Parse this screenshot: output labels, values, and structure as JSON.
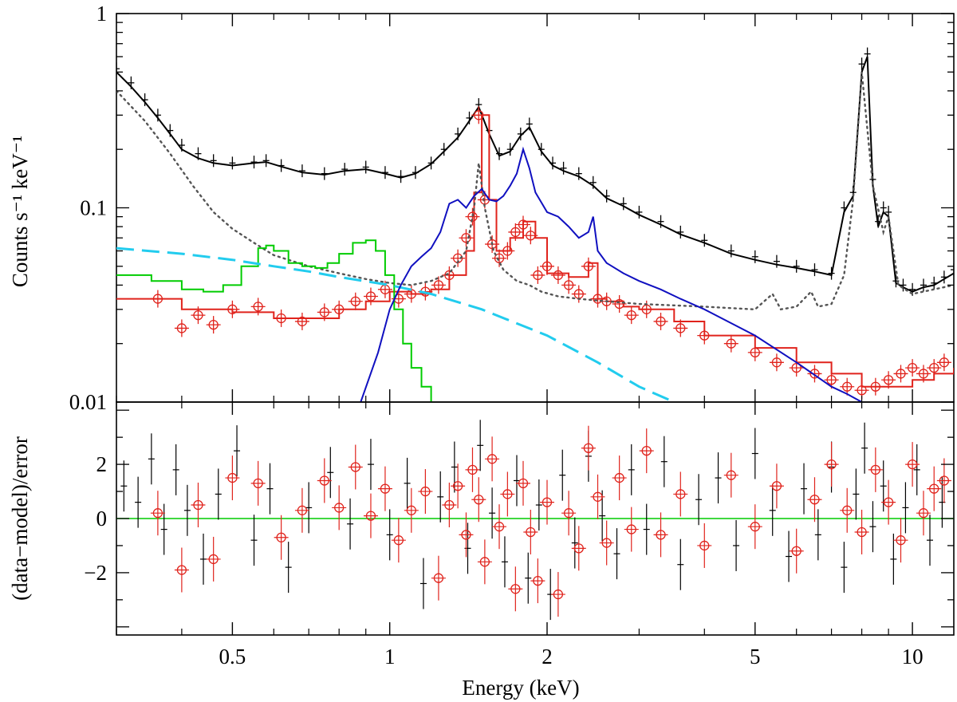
{
  "chart_data": [
    {
      "type": "line",
      "panel": "top",
      "xscale": "log",
      "yscale": "log",
      "xlim": [
        0.3,
        12.0
      ],
      "ylim": [
        0.01,
        1.0
      ],
      "ylabel": "Counts s⁻¹ keV⁻¹",
      "ytick_labels": [
        "0.01",
        "0.1",
        "1"
      ],
      "ytick_values": [
        0.01,
        0.1,
        1
      ],
      "series": [
        {
          "name": "data_black",
          "style": "crosses",
          "color": "#000000",
          "x": [
            0.3,
            0.32,
            0.34,
            0.36,
            0.38,
            0.4,
            0.43,
            0.46,
            0.5,
            0.55,
            0.58,
            0.62,
            0.68,
            0.75,
            0.82,
            0.9,
            0.98,
            1.05,
            1.12,
            1.2,
            1.27,
            1.35,
            1.42,
            1.48,
            1.55,
            1.62,
            1.7,
            1.78,
            1.85,
            1.95,
            2.05,
            2.15,
            2.3,
            2.45,
            2.6,
            2.8,
            3.0,
            3.3,
            3.6,
            4.0,
            4.5,
            5.0,
            5.5,
            6.0,
            6.5,
            7.0,
            7.4,
            7.7,
            8.0,
            8.2,
            8.4,
            8.6,
            8.8,
            9.0,
            9.3,
            9.6,
            10.0,
            10.5,
            11.0,
            11.5,
            12.0
          ],
          "y": [
            0.52,
            0.44,
            0.36,
            0.3,
            0.25,
            0.21,
            0.19,
            0.175,
            0.17,
            0.172,
            0.175,
            0.165,
            0.155,
            0.15,
            0.158,
            0.162,
            0.152,
            0.145,
            0.152,
            0.17,
            0.2,
            0.24,
            0.29,
            0.34,
            0.25,
            0.19,
            0.2,
            0.24,
            0.27,
            0.2,
            0.17,
            0.16,
            0.15,
            0.135,
            0.115,
            0.105,
            0.095,
            0.085,
            0.075,
            0.068,
            0.06,
            0.056,
            0.053,
            0.05,
            0.048,
            0.046,
            0.1,
            0.12,
            0.55,
            0.62,
            0.14,
            0.085,
            0.1,
            0.095,
            0.042,
            0.04,
            0.038,
            0.04,
            0.041,
            0.044,
            0.048
          ]
        },
        {
          "name": "model_black",
          "style": "line",
          "color": "#000000",
          "x": [
            0.3,
            0.32,
            0.34,
            0.36,
            0.38,
            0.4,
            0.43,
            0.46,
            0.5,
            0.55,
            0.58,
            0.62,
            0.68,
            0.75,
            0.82,
            0.9,
            0.98,
            1.05,
            1.12,
            1.2,
            1.27,
            1.35,
            1.42,
            1.48,
            1.55,
            1.62,
            1.7,
            1.78,
            1.85,
            1.95,
            2.05,
            2.15,
            2.3,
            2.45,
            2.6,
            2.8,
            3.0,
            3.3,
            3.6,
            4.0,
            4.5,
            5.0,
            5.5,
            6.0,
            6.5,
            7.0,
            7.4,
            7.7,
            8.0,
            8.2,
            8.4,
            8.6,
            8.8,
            9.0,
            9.3,
            9.6,
            10.0,
            10.5,
            11.0,
            11.5,
            12.0
          ],
          "y": [
            0.5,
            0.42,
            0.35,
            0.29,
            0.24,
            0.2,
            0.18,
            0.17,
            0.165,
            0.17,
            0.172,
            0.163,
            0.152,
            0.148,
            0.155,
            0.158,
            0.15,
            0.143,
            0.15,
            0.168,
            0.195,
            0.23,
            0.28,
            0.33,
            0.24,
            0.185,
            0.195,
            0.235,
            0.26,
            0.195,
            0.165,
            0.155,
            0.145,
            0.13,
            0.112,
            0.102,
            0.092,
            0.082,
            0.073,
            0.066,
            0.058,
            0.054,
            0.051,
            0.049,
            0.047,
            0.045,
            0.095,
            0.115,
            0.5,
            0.6,
            0.13,
            0.08,
            0.095,
            0.09,
            0.041,
            0.039,
            0.037,
            0.039,
            0.04,
            0.043,
            0.046
          ]
        },
        {
          "name": "data_red",
          "style": "circles",
          "color": "#e0231c",
          "x": [
            0.36,
            0.4,
            0.43,
            0.46,
            0.5,
            0.56,
            0.62,
            0.68,
            0.75,
            0.8,
            0.86,
            0.92,
            0.98,
            1.04,
            1.1,
            1.17,
            1.24,
            1.3,
            1.35,
            1.4,
            1.44,
            1.48,
            1.52,
            1.57,
            1.62,
            1.68,
            1.74,
            1.8,
            1.86,
            1.92,
            2.0,
            2.1,
            2.2,
            2.3,
            2.4,
            2.5,
            2.6,
            2.75,
            2.9,
            3.1,
            3.3,
            3.6,
            4.0,
            4.5,
            5.0,
            5.5,
            6.0,
            6.5,
            7.0,
            7.5,
            8.0,
            8.5,
            9.0,
            9.5,
            10.0,
            10.5,
            11.0,
            11.5
          ],
          "y": [
            0.034,
            0.024,
            0.028,
            0.025,
            0.03,
            0.031,
            0.027,
            0.026,
            0.029,
            0.03,
            0.033,
            0.035,
            0.038,
            0.034,
            0.036,
            0.037,
            0.04,
            0.045,
            0.055,
            0.07,
            0.09,
            0.3,
            0.11,
            0.065,
            0.055,
            0.06,
            0.075,
            0.082,
            0.072,
            0.045,
            0.05,
            0.045,
            0.04,
            0.036,
            0.05,
            0.034,
            0.033,
            0.032,
            0.028,
            0.03,
            0.026,
            0.024,
            0.022,
            0.02,
            0.018,
            0.016,
            0.015,
            0.014,
            0.013,
            0.012,
            0.0115,
            0.012,
            0.013,
            0.014,
            0.015,
            0.014,
            0.015,
            0.016
          ]
        },
        {
          "name": "model_red",
          "style": "step",
          "color": "#e0231c",
          "x": [
            0.3,
            0.4,
            0.5,
            0.6,
            0.7,
            0.8,
            0.9,
            1.0,
            1.1,
            1.2,
            1.3,
            1.4,
            1.45,
            1.5,
            1.55,
            1.6,
            1.7,
            1.8,
            1.9,
            2.0,
            2.2,
            2.4,
            2.5,
            2.6,
            2.8,
            3.0,
            3.5,
            4.0,
            5.0,
            6.0,
            7.0,
            8.0,
            9.0,
            10.0,
            11.0,
            12.0
          ],
          "y": [
            0.034,
            0.03,
            0.029,
            0.027,
            0.027,
            0.03,
            0.033,
            0.037,
            0.036,
            0.038,
            0.045,
            0.06,
            0.12,
            0.3,
            0.11,
            0.06,
            0.07,
            0.085,
            0.07,
            0.046,
            0.044,
            0.052,
            0.034,
            0.033,
            0.031,
            0.03,
            0.026,
            0.022,
            0.019,
            0.016,
            0.014,
            0.012,
            0.012,
            0.013,
            0.014,
            0.015
          ]
        },
        {
          "name": "dotted_gray",
          "style": "dotted",
          "color": "#555555",
          "x": [
            0.3,
            0.34,
            0.38,
            0.42,
            0.46,
            0.5,
            0.55,
            0.6,
            0.7,
            0.8,
            0.9,
            1.0,
            1.1,
            1.2,
            1.3,
            1.4,
            1.45,
            1.48,
            1.52,
            1.58,
            1.65,
            1.75,
            1.85,
            1.95,
            2.1,
            2.3,
            2.6,
            3.0,
            4.0,
            5.0,
            5.4,
            5.6,
            6.0,
            6.4,
            6.6,
            7.0,
            7.4,
            7.7,
            8.0,
            8.4,
            8.8,
            9.0,
            9.4,
            10.0,
            12.0
          ],
          "y": [
            0.4,
            0.28,
            0.19,
            0.13,
            0.095,
            0.078,
            0.066,
            0.057,
            0.05,
            0.046,
            0.043,
            0.041,
            0.04,
            0.042,
            0.046,
            0.06,
            0.1,
            0.17,
            0.1,
            0.06,
            0.048,
            0.042,
            0.04,
            0.037,
            0.035,
            0.034,
            0.033,
            0.032,
            0.031,
            0.03,
            0.036,
            0.03,
            0.031,
            0.037,
            0.031,
            0.032,
            0.045,
            0.11,
            0.5,
            0.13,
            0.075,
            0.09,
            0.04,
            0.036,
            0.04
          ]
        },
        {
          "name": "green_component",
          "style": "step",
          "color": "#00cc00",
          "x": [
            0.3,
            0.35,
            0.4,
            0.44,
            0.48,
            0.52,
            0.56,
            0.58,
            0.6,
            0.64,
            0.68,
            0.72,
            0.76,
            0.8,
            0.85,
            0.9,
            0.94,
            0.98,
            1.02,
            1.06,
            1.1,
            1.15,
            1.2
          ],
          "y": [
            0.045,
            0.042,
            0.038,
            0.037,
            0.04,
            0.05,
            0.062,
            0.064,
            0.06,
            0.052,
            0.05,
            0.049,
            0.052,
            0.058,
            0.066,
            0.068,
            0.06,
            0.045,
            0.03,
            0.02,
            0.015,
            0.012,
            0.01
          ]
        },
        {
          "name": "cyan_component",
          "style": "dashed",
          "color": "#22ccee",
          "x": [
            0.3,
            0.4,
            0.5,
            0.6,
            0.7,
            0.8,
            1.0,
            1.2,
            1.5,
            2.0,
            2.5,
            3.0,
            3.5
          ],
          "y": [
            0.062,
            0.058,
            0.054,
            0.05,
            0.047,
            0.044,
            0.04,
            0.036,
            0.03,
            0.022,
            0.016,
            0.012,
            0.01
          ]
        },
        {
          "name": "blue_component",
          "style": "line",
          "color": "#1010c0",
          "x": [
            0.88,
            0.95,
            1.0,
            1.05,
            1.1,
            1.15,
            1.2,
            1.25,
            1.3,
            1.35,
            1.4,
            1.45,
            1.5,
            1.55,
            1.6,
            1.65,
            1.7,
            1.75,
            1.8,
            1.85,
            1.9,
            2.0,
            2.1,
            2.2,
            2.3,
            2.4,
            2.45,
            2.5,
            2.6,
            2.8,
            3.0,
            3.3,
            3.6,
            4.0,
            5.0,
            6.0,
            7.0,
            7.5,
            8.0
          ],
          "y": [
            0.01,
            0.018,
            0.03,
            0.04,
            0.05,
            0.056,
            0.062,
            0.075,
            0.105,
            0.11,
            0.1,
            0.115,
            0.125,
            0.11,
            0.108,
            0.115,
            0.13,
            0.15,
            0.2,
            0.16,
            0.12,
            0.095,
            0.09,
            0.08,
            0.07,
            0.075,
            0.09,
            0.06,
            0.052,
            0.046,
            0.042,
            0.038,
            0.034,
            0.03,
            0.022,
            0.016,
            0.012,
            0.011,
            0.01
          ]
        }
      ]
    },
    {
      "type": "scatter",
      "panel": "bottom",
      "xscale": "log",
      "xlim": [
        0.3,
        12.0
      ],
      "ylim": [
        -4.3,
        4.3
      ],
      "xlabel": "Energy (keV)",
      "ylabel": "(data−model)/error",
      "xtick_labels": [
        "0.5",
        "1",
        "2",
        "5",
        "10"
      ],
      "xtick_values": [
        0.5,
        1,
        2,
        5,
        10
      ],
      "ytick_labels": [
        "−2",
        "0",
        "2"
      ],
      "ytick_values": [
        -2,
        0,
        2
      ],
      "zero_line_color": "#00cc00",
      "series": [
        {
          "name": "residuals_black",
          "color": "#000000",
          "x": [
            0.31,
            0.33,
            0.35,
            0.37,
            0.39,
            0.41,
            0.44,
            0.47,
            0.51,
            0.55,
            0.59,
            0.64,
            0.7,
            0.77,
            0.84,
            0.92,
            1.0,
            1.08,
            1.16,
            1.25,
            1.33,
            1.41,
            1.49,
            1.57,
            1.66,
            1.75,
            1.84,
            1.93,
            2.03,
            2.14,
            2.26,
            2.4,
            2.55,
            2.72,
            2.9,
            3.1,
            3.35,
            3.6,
            3.9,
            4.25,
            4.6,
            5.0,
            5.4,
            5.8,
            6.2,
            6.6,
            7.0,
            7.4,
            7.8,
            8.1,
            8.4,
            8.8,
            9.2,
            9.7,
            10.2,
            10.8,
            11.4
          ],
          "y": [
            1.2,
            0.6,
            2.2,
            -0.4,
            1.8,
            0.3,
            -1.5,
            0.9,
            2.5,
            -0.8,
            1.1,
            -1.8,
            0.4,
            1.7,
            -0.2,
            2.0,
            -0.6,
            1.3,
            -2.4,
            0.8,
            1.9,
            -1.1,
            2.7,
            0.2,
            -1.6,
            1.4,
            -2.2,
            0.5,
            -2.8,
            1.6,
            -0.9,
            2.3,
            0.1,
            -1.3,
            1.8,
            -0.4,
            2.1,
            -1.7,
            0.7,
            1.5,
            -1.0,
            2.4,
            0.3,
            -1.4,
            1.1,
            -0.6,
            1.9,
            -1.8,
            0.9,
            2.6,
            -0.3,
            1.2,
            -1.5,
            0.4,
            1.8,
            -0.8,
            0.6
          ]
        },
        {
          "name": "residuals_red",
          "color": "#e0231c",
          "x": [
            0.36,
            0.4,
            0.43,
            0.46,
            0.5,
            0.56,
            0.62,
            0.68,
            0.75,
            0.8,
            0.86,
            0.92,
            0.98,
            1.04,
            1.1,
            1.17,
            1.24,
            1.3,
            1.35,
            1.4,
            1.44,
            1.48,
            1.52,
            1.57,
            1.62,
            1.68,
            1.74,
            1.8,
            1.86,
            1.92,
            2.0,
            2.1,
            2.2,
            2.3,
            2.4,
            2.5,
            2.6,
            2.75,
            2.9,
            3.1,
            3.3,
            3.6,
            4.0,
            4.5,
            5.0,
            5.5,
            6.0,
            6.5,
            7.0,
            7.5,
            8.0,
            8.5,
            9.0,
            9.5,
            10.0,
            10.5,
            11.0,
            11.5
          ],
          "y": [
            0.2,
            -1.9,
            0.5,
            -1.5,
            1.5,
            1.3,
            -0.7,
            0.3,
            1.4,
            0.4,
            1.9,
            0.1,
            1.1,
            -0.8,
            0.3,
            1.0,
            -2.2,
            0.5,
            1.2,
            -0.6,
            1.8,
            0.7,
            -1.6,
            2.2,
            -0.3,
            0.9,
            -2.6,
            1.3,
            -0.5,
            -2.3,
            0.6,
            -2.8,
            0.2,
            -1.1,
            2.6,
            0.8,
            -0.9,
            1.5,
            -0.4,
            2.5,
            -0.6,
            0.9,
            -1.0,
            1.6,
            -0.3,
            1.2,
            -1.2,
            0.7,
            2.0,
            0.3,
            -0.5,
            1.8,
            0.6,
            -0.8,
            2.0,
            0.2,
            1.1,
            1.4
          ]
        }
      ]
    }
  ]
}
